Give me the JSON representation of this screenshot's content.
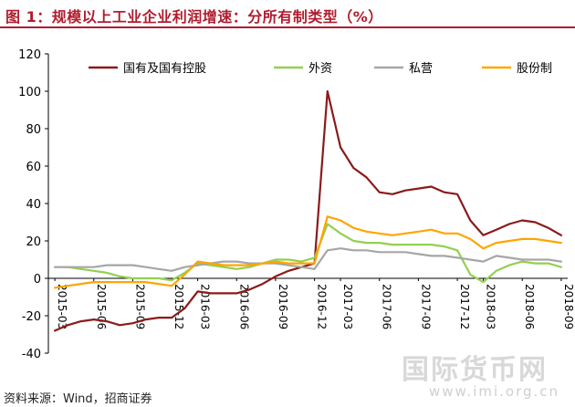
{
  "header": {
    "title": "图 1：规模以上工业企业利润增速：分所有制类型（%）"
  },
  "footer": {
    "source": "资料来源：Wind，招商证券"
  },
  "watermark": {
    "text": "国际货币网",
    "url": "www.imi.org.cn"
  },
  "chart_data": {
    "type": "line",
    "title": "",
    "xlabel": "",
    "ylabel": "",
    "ylim": [
      -40,
      120
    ],
    "yticks": [
      -40,
      -20,
      0,
      20,
      40,
      60,
      80,
      100,
      120
    ],
    "grid": false,
    "legend_position": "top",
    "x": [
      "2015-03",
      "2015-04",
      "2015-05",
      "2015-06",
      "2015-07",
      "2015-08",
      "2015-09",
      "2015-10",
      "2015-11",
      "2015-12",
      "2016-02",
      "2016-03",
      "2016-04",
      "2016-05",
      "2016-06",
      "2016-07",
      "2016-08",
      "2016-09",
      "2016-10",
      "2016-11",
      "2016-12",
      "2017-02",
      "2017-03",
      "2017-04",
      "2017-05",
      "2017-06",
      "2017-07",
      "2017-08",
      "2017-09",
      "2017-10",
      "2017-11",
      "2017-12",
      "2018-02",
      "2018-03",
      "2018-04",
      "2018-05",
      "2018-06",
      "2018-07",
      "2018-08",
      "2018-09"
    ],
    "x_tick_labels": [
      "2015-03",
      "2015-06",
      "2015-09",
      "2015-12",
      "2016-03",
      "2016-06",
      "2016-09",
      "2016-12",
      "2017-03",
      "2017-06",
      "2017-09",
      "2017-12",
      "2018-03",
      "2018-06",
      "2018-09"
    ],
    "series": [
      {
        "name": "国有及国有控股",
        "color": "#8b1a1a",
        "values": [
          -28,
          -25,
          -23,
          -22,
          -23,
          -25,
          -24,
          -22,
          -21,
          -21,
          -16,
          -7,
          -8,
          -8,
          -8,
          -6,
          -3,
          1,
          4,
          6,
          8,
          100,
          70,
          59,
          54,
          46,
          45,
          47,
          48,
          49,
          46,
          45,
          31,
          23,
          26,
          29,
          31,
          30,
          27,
          23
        ]
      },
      {
        "name": "外资",
        "color": "#92d050",
        "values": [
          6,
          6,
          5,
          4,
          3,
          1,
          0,
          0,
          0,
          -1,
          3,
          8,
          7,
          6,
          5,
          6,
          8,
          10,
          10,
          9,
          11,
          29,
          24,
          20,
          19,
          19,
          18,
          18,
          18,
          18,
          17,
          15,
          2,
          -2,
          4,
          7,
          9,
          8,
          8,
          6
        ]
      },
      {
        "name": "私营",
        "color": "#a6a6a6",
        "values": [
          6,
          6,
          6,
          6,
          7,
          7,
          7,
          6,
          5,
          4,
          6,
          7,
          8,
          9,
          9,
          8,
          8,
          8,
          7,
          6,
          5,
          15,
          16,
          15,
          15,
          14,
          14,
          14,
          13,
          12,
          12,
          11,
          10,
          9,
          12,
          11,
          10,
          10,
          10,
          9
        ]
      },
      {
        "name": "股份制",
        "color": "#ffa500",
        "values": [
          -5,
          -4,
          -3,
          -2,
          -2,
          -2,
          -2,
          -2,
          -3,
          -4,
          2,
          9,
          8,
          7,
          7,
          7,
          8,
          9,
          8,
          8,
          8,
          33,
          31,
          27,
          25,
          24,
          23,
          24,
          25,
          26,
          24,
          24,
          21,
          16,
          19,
          20,
          21,
          21,
          20,
          19
        ]
      }
    ]
  }
}
